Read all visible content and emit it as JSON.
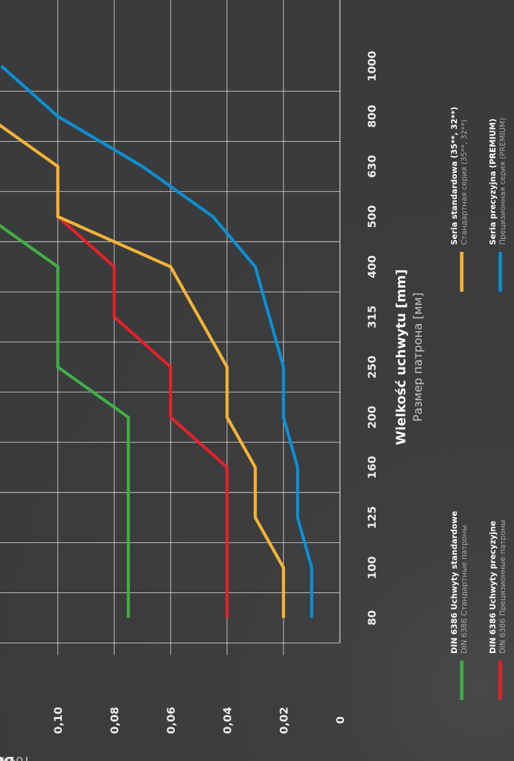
{
  "chart_data": {
    "type": "line",
    "orientation": "rotated-90-clockwise",
    "xlabel": "Wielkość uchwytu [mm]",
    "xlabel_sub": "Размер патрона [мм]",
    "ylabel": "Dokładność mocowania [mm]",
    "ylabel_sub": "Точность центрирования [мм]",
    "categories": [
      "80",
      "100",
      "125",
      "160",
      "200",
      "250",
      "315",
      "400",
      "500",
      "630",
      "800",
      "1000"
    ],
    "y_ticks": [
      "0",
      "0,02",
      "0,04",
      "0,06",
      "0,08",
      "0,10"
    ],
    "ylim": [
      0,
      0.1
    ],
    "grid": true,
    "series": [
      {
        "name": "DIN 6386 Uchwyty standardowe",
        "name_sub": "DIN 6386 Стандартные патроны",
        "color": "#3fae46",
        "points": [
          [
            0,
            0.075
          ],
          [
            1,
            0.075
          ],
          [
            2,
            0.075
          ],
          [
            3,
            0.075
          ],
          [
            4,
            0.075
          ],
          [
            5,
            0.1
          ],
          [
            6,
            0.1
          ],
          [
            7,
            0.1
          ],
          [
            8,
            0.125
          ]
        ]
      },
      {
        "name": "DIN 6386 Uchwyty precyzyjne",
        "name_sub": "DIN 6386 Прецизионные патроны",
        "color": "#e42127",
        "points": [
          [
            0,
            0.04
          ],
          [
            1,
            0.04
          ],
          [
            2,
            0.04
          ],
          [
            3,
            0.04
          ],
          [
            4,
            0.06
          ],
          [
            5,
            0.06
          ],
          [
            6,
            0.08
          ],
          [
            7,
            0.08
          ],
          [
            8,
            0.1
          ],
          [
            9,
            0.1
          ]
        ]
      },
      {
        "name": "Seria standardowa (35**, 32**)",
        "name_sub": "Стандартная серия (35**, 32**)",
        "color": "#f8b334",
        "points": [
          [
            0,
            0.02
          ],
          [
            1,
            0.02
          ],
          [
            2,
            0.03
          ],
          [
            3,
            0.03
          ],
          [
            4,
            0.04
          ],
          [
            5,
            0.04
          ],
          [
            7,
            0.06
          ],
          [
            8,
            0.1
          ],
          [
            9,
            0.1
          ],
          [
            10,
            0.125
          ]
        ]
      },
      {
        "name": "Seria precyzyjna (PREMIUM)",
        "name_sub": "Прецизионная серия (PREMIUM)",
        "color": "#0c8fd2",
        "points": [
          [
            0,
            0.01
          ],
          [
            1,
            0.01
          ],
          [
            2,
            0.015
          ],
          [
            3,
            0.015
          ],
          [
            4,
            0.02
          ],
          [
            5,
            0.02
          ],
          [
            7,
            0.03
          ],
          [
            8,
            0.045
          ],
          [
            9,
            0.07
          ],
          [
            10,
            0.1
          ],
          [
            11,
            0.12
          ]
        ]
      }
    ]
  }
}
